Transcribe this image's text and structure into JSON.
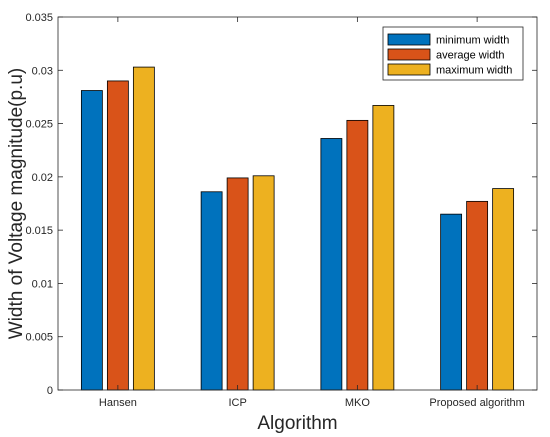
{
  "chart_data": {
    "type": "bar",
    "title": "",
    "xlabel": "Algorithm",
    "ylabel": "Width of Voltage magnitude(p.u)",
    "categories": [
      "Hansen",
      "ICP",
      "MKO",
      "Proposed algorithm"
    ],
    "series": [
      {
        "name": "minimum width",
        "color": "#0072BD",
        "values": [
          0.0281,
          0.0186,
          0.0236,
          0.0165
        ]
      },
      {
        "name": "average width",
        "color": "#D95319",
        "values": [
          0.029,
          0.0199,
          0.0253,
          0.0177
        ]
      },
      {
        "name": "maximum width",
        "color": "#EDB120",
        "values": [
          0.0303,
          0.0201,
          0.0267,
          0.0189
        ]
      }
    ],
    "ylim": [
      0,
      0.035
    ],
    "yticks": [
      "0",
      "0.005",
      "0.01",
      "0.015",
      "0.02",
      "0.025",
      "0.03",
      "0.035"
    ],
    "grid": false,
    "legend_position": "top-right"
  }
}
